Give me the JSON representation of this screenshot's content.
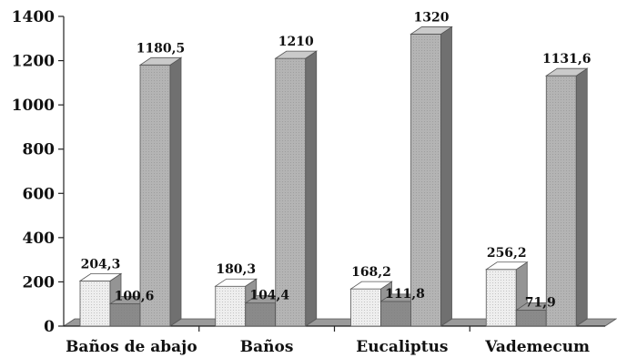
{
  "chart_data": {
    "type": "bar",
    "categories": [
      "Baños de abajo",
      "Baños",
      "Eucaliptus",
      "Vademecum"
    ],
    "series": [
      {
        "values": [
          204.3,
          180.3,
          168.2,
          256.2
        ],
        "labels": [
          "204,3",
          "180,3",
          "168,2",
          "256,2"
        ],
        "color": "#eeeeee"
      },
      {
        "values": [
          100.6,
          104.4,
          111.8,
          71.9
        ],
        "labels": [
          "100,6",
          "104,4",
          "111,8",
          "71,9"
        ],
        "color": "#8a8a8a"
      },
      {
        "values": [
          1180.5,
          1210,
          1320,
          1131.6
        ],
        "labels": [
          "1180,5",
          "1210",
          "1320",
          "1131,6"
        ],
        "color": "#b4b4b4"
      }
    ],
    "yticks": [
      0,
      200,
      400,
      600,
      800,
      1000,
      1200,
      1400
    ],
    "ylim": [
      0,
      1400
    ],
    "grid": false,
    "legend": "none"
  }
}
